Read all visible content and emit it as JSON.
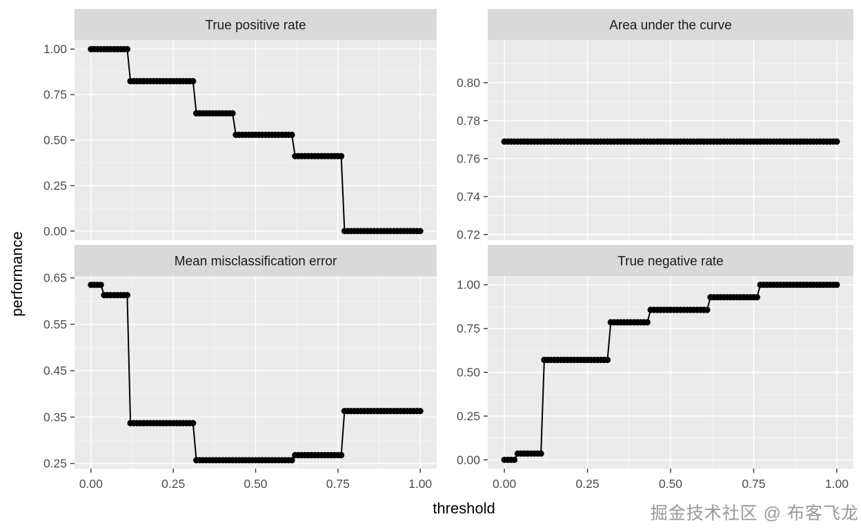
{
  "watermark": "掘金技术社区 @ 布客飞龙",
  "axes": {
    "x_title": "threshold",
    "y_title": "performance"
  },
  "colors": {
    "strip_bg": "#d9d9d9",
    "strip_text": "#1a1a1a",
    "panel_bg": "#ebebeb",
    "grid_major": "#ffffff",
    "grid_minor": "#ffffff",
    "point": "#000000",
    "line": "#000000",
    "tick_mark": "#333333",
    "tick_text": "#4d4d4d"
  },
  "chart_data": [
    {
      "type": "line",
      "title": "True positive rate",
      "xlabel": "threshold",
      "ylabel": "performance",
      "grid": true,
      "legend": "none",
      "x_step": 0.01,
      "xlim": [
        -0.05,
        1.05
      ],
      "ylim": [
        -0.05,
        1.05
      ],
      "xticks": {
        "values": [
          0,
          0.25,
          0.5,
          0.75,
          1.0
        ],
        "labels": [
          "0.00",
          "0.25",
          "0.50",
          "0.75",
          "1.00"
        ],
        "labels_visible": false
      },
      "yticks": {
        "values": [
          0,
          0.25,
          0.5,
          0.75,
          1.0
        ],
        "labels": [
          "0.00",
          "0.25",
          "0.50",
          "0.75",
          "1.00"
        ]
      },
      "segments": [
        {
          "from": 0.0,
          "to": 0.11,
          "value": 1.0
        },
        {
          "from": 0.12,
          "to": 0.31,
          "value": 0.824
        },
        {
          "from": 0.32,
          "to": 0.43,
          "value": 0.647
        },
        {
          "from": 0.44,
          "to": 0.61,
          "value": 0.529
        },
        {
          "from": 0.62,
          "to": 0.76,
          "value": 0.412
        },
        {
          "from": 0.77,
          "to": 1.0,
          "value": 0.0
        }
      ]
    },
    {
      "type": "line",
      "title": "Area under the curve",
      "xlabel": "threshold",
      "ylabel": "performance",
      "grid": true,
      "legend": "none",
      "x_step": 0.01,
      "xlim": [
        -0.05,
        1.05
      ],
      "ylim": [
        0.717,
        0.8225
      ],
      "xticks": {
        "values": [
          0,
          0.25,
          0.5,
          0.75,
          1.0
        ],
        "labels": [
          "0.00",
          "0.25",
          "0.50",
          "0.75",
          "1.00"
        ],
        "labels_visible": false
      },
      "yticks": {
        "values": [
          0.72,
          0.74,
          0.76,
          0.78,
          0.8
        ],
        "labels": [
          "0.72",
          "0.74",
          "0.76",
          "0.78",
          "0.80"
        ]
      },
      "segments": [
        {
          "from": 0.0,
          "to": 1.0,
          "value": 0.769
        }
      ]
    },
    {
      "type": "line",
      "title": "Mean misclassification error",
      "xlabel": "threshold",
      "ylabel": "performance",
      "grid": true,
      "legend": "none",
      "x_step": 0.01,
      "xlim": [
        -0.05,
        1.05
      ],
      "ylim": [
        0.239,
        0.654
      ],
      "xticks": {
        "values": [
          0,
          0.25,
          0.5,
          0.75,
          1.0
        ],
        "labels": [
          "0.00",
          "0.25",
          "0.50",
          "0.75",
          "1.00"
        ],
        "labels_visible": true
      },
      "yticks": {
        "values": [
          0.25,
          0.35,
          0.45,
          0.55,
          0.65
        ],
        "labels": [
          "0.25",
          "0.35",
          "0.45",
          "0.55",
          "0.65"
        ]
      },
      "segments": [
        {
          "from": 0.0,
          "to": 0.03,
          "value": 0.635
        },
        {
          "from": 0.04,
          "to": 0.11,
          "value": 0.613
        },
        {
          "from": 0.12,
          "to": 0.31,
          "value": 0.337
        },
        {
          "from": 0.32,
          "to": 0.61,
          "value": 0.257
        },
        {
          "from": 0.62,
          "to": 0.76,
          "value": 0.268
        },
        {
          "from": 0.77,
          "to": 1.0,
          "value": 0.363
        }
      ]
    },
    {
      "type": "line",
      "title": "True negative rate",
      "xlabel": "threshold",
      "ylabel": "performance",
      "grid": true,
      "legend": "none",
      "x_step": 0.01,
      "xlim": [
        -0.05,
        1.05
      ],
      "ylim": [
        -0.05,
        1.05
      ],
      "xticks": {
        "values": [
          0,
          0.25,
          0.5,
          0.75,
          1.0
        ],
        "labels": [
          "0.00",
          "0.25",
          "0.50",
          "0.75",
          "1.00"
        ],
        "labels_visible": true
      },
      "yticks": {
        "values": [
          0,
          0.25,
          0.5,
          0.75,
          1.0
        ],
        "labels": [
          "0.00",
          "0.25",
          "0.50",
          "0.75",
          "1.00"
        ]
      },
      "segments": [
        {
          "from": 0.0,
          "to": 0.03,
          "value": 0.0
        },
        {
          "from": 0.04,
          "to": 0.11,
          "value": 0.036
        },
        {
          "from": 0.12,
          "to": 0.31,
          "value": 0.571
        },
        {
          "from": 0.32,
          "to": 0.43,
          "value": 0.786
        },
        {
          "from": 0.44,
          "to": 0.61,
          "value": 0.857
        },
        {
          "from": 0.62,
          "to": 0.76,
          "value": 0.929
        },
        {
          "from": 0.77,
          "to": 1.0,
          "value": 1.0
        }
      ]
    }
  ]
}
